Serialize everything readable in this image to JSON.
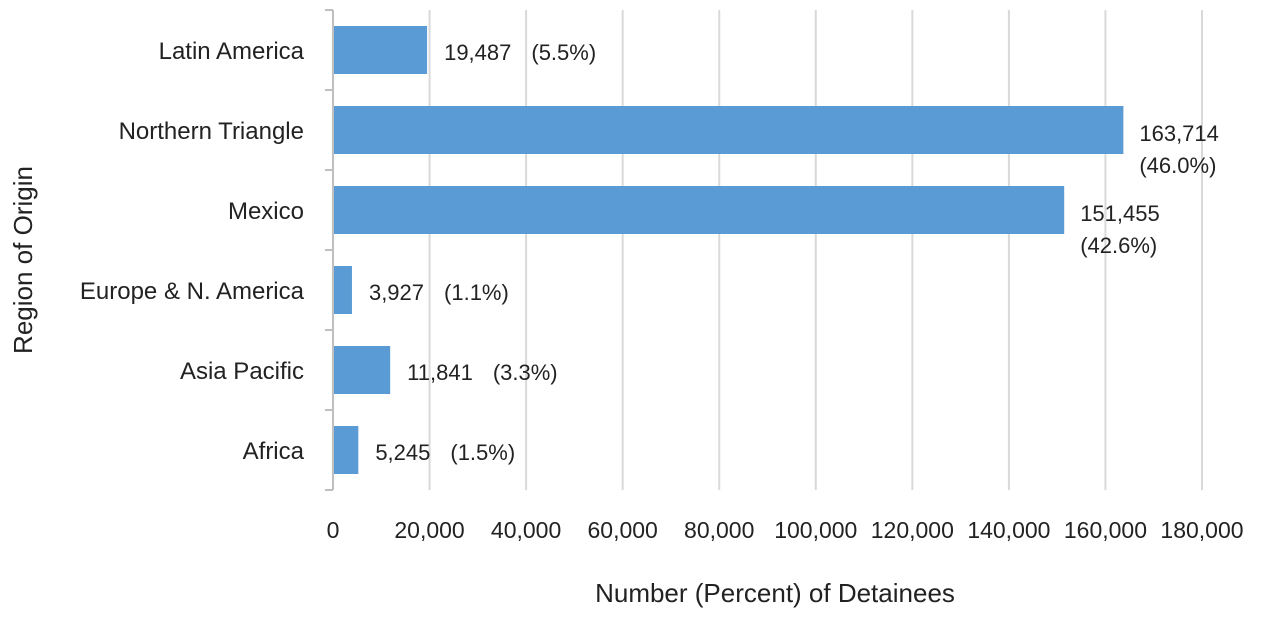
{
  "chart_data": {
    "type": "bar",
    "orientation": "horizontal",
    "categories": [
      "Latin America",
      "Northern Triangle",
      "Mexico",
      "Europe & N. America",
      "Asia Pacific",
      "Africa"
    ],
    "values": [
      19487,
      163714,
      151455,
      3927,
      11841,
      5245
    ],
    "value_labels": [
      "19,487",
      "163,714",
      "151,455",
      "3,927",
      "11,841",
      "5,245"
    ],
    "percent_labels": [
      "(5.5%)",
      "(46.0%)",
      "(42.6%)",
      "(1.1%)",
      "(3.3%)",
      "(1.5%)"
    ],
    "xlabel": "Number (Percent) of Detainees",
    "ylabel": "Region of Origin",
    "xlim": [
      0,
      180000
    ],
    "x_ticks": [
      0,
      20000,
      40000,
      60000,
      80000,
      100000,
      120000,
      140000,
      160000,
      180000
    ],
    "x_tick_labels": [
      "0",
      "20,000",
      "40,000",
      "60,000",
      "80,000",
      "100,000",
      "120,000",
      "140,000",
      "160,000",
      "180,000"
    ],
    "grid": true,
    "bar_color": "#5b9bd5"
  }
}
